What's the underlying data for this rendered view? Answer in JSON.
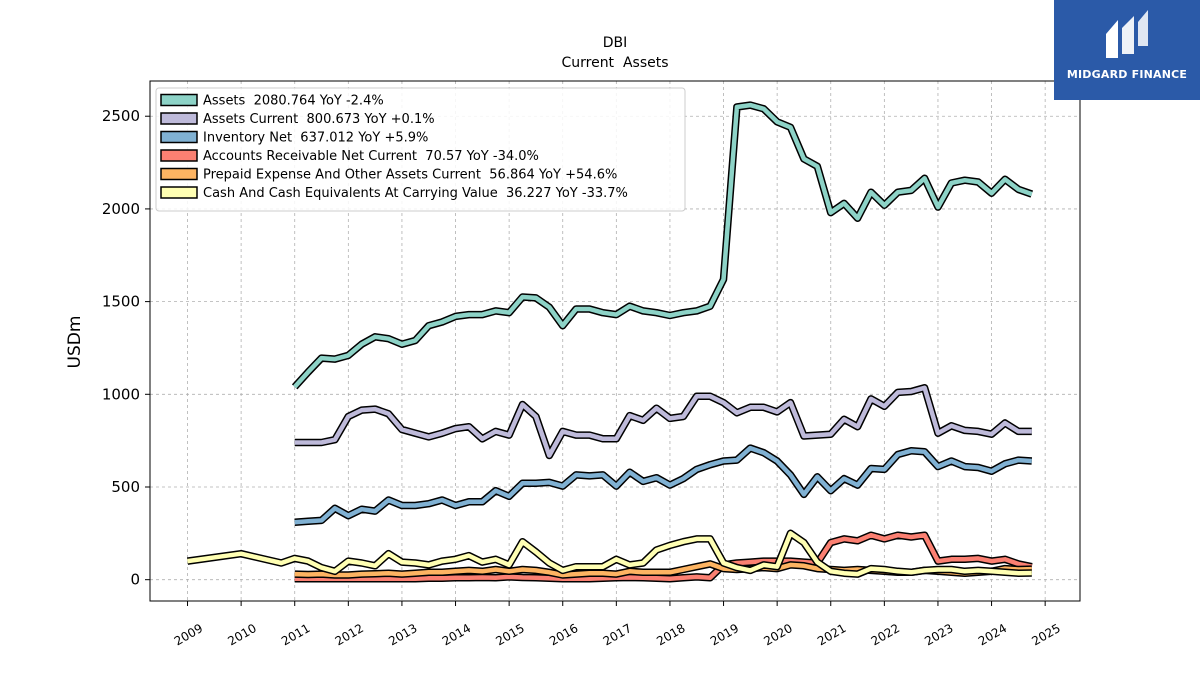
{
  "header": {
    "ticker": "DBI",
    "subtitle": "Current  Assets"
  },
  "logo": {
    "text": "MIDGARD FINANCE",
    "background": "#2b5aa8"
  },
  "chart_data": {
    "type": "line",
    "title": "DBI",
    "subtitle": "Current  Assets",
    "xlabel": "",
    "ylabel": "USDm",
    "xlim": [
      2008.3,
      2025.65
    ],
    "ylim": [
      -115,
      2690
    ],
    "xticks": [
      2009,
      2010,
      2011,
      2012,
      2013,
      2014,
      2015,
      2016,
      2017,
      2018,
      2019,
      2020,
      2021,
      2022,
      2023,
      2024,
      2025
    ],
    "yticks": [
      0,
      500,
      1000,
      1500,
      2000,
      2500
    ],
    "grid": true,
    "legend_position": "top-left",
    "series": [
      {
        "name": "Assets",
        "legend": "Assets  2080.764 YoY -2.4%",
        "color": "#8dd3c7",
        "x": [
          2011.0,
          2011.25,
          2011.5,
          2011.75,
          2012.0,
          2012.25,
          2012.5,
          2012.75,
          2013.0,
          2013.25,
          2013.5,
          2013.75,
          2014.0,
          2014.25,
          2014.5,
          2014.75,
          2015.0,
          2015.25,
          2015.5,
          2015.75,
          2016.0,
          2016.25,
          2016.5,
          2016.75,
          2017.0,
          2017.25,
          2017.5,
          2017.75,
          2018.0,
          2018.25,
          2018.5,
          2018.75,
          2019.0,
          2019.25,
          2019.5,
          2019.75,
          2020.0,
          2020.25,
          2020.5,
          2020.75,
          2021.0,
          2021.25,
          2021.5,
          2021.75,
          2022.0,
          2022.25,
          2022.5,
          2022.75,
          2023.0,
          2023.25,
          2023.5,
          2023.75,
          2024.0,
          2024.25,
          2024.5,
          2024.75
        ],
        "y": [
          1040,
          1120,
          1195,
          1190,
          1210,
          1270,
          1310,
          1300,
          1270,
          1290,
          1370,
          1390,
          1420,
          1430,
          1430,
          1450,
          1440,
          1525,
          1520,
          1470,
          1370,
          1460,
          1460,
          1440,
          1430,
          1475,
          1450,
          1440,
          1425,
          1440,
          1450,
          1475,
          1620,
          2550,
          2560,
          2540,
          2470,
          2440,
          2270,
          2230,
          1980,
          2030,
          1950,
          2090,
          2020,
          2090,
          2100,
          2165,
          2010,
          2140,
          2155,
          2145,
          2085,
          2160,
          2105,
          2080
        ]
      },
      {
        "name": "Assets Current",
        "legend": "Assets Current  800.673 YoY +0.1%",
        "color": "#bebada",
        "x": [
          2011.0,
          2011.25,
          2011.5,
          2011.75,
          2012.0,
          2012.25,
          2012.5,
          2012.75,
          2013.0,
          2013.25,
          2013.5,
          2013.75,
          2014.0,
          2014.25,
          2014.5,
          2014.75,
          2015.0,
          2015.25,
          2015.5,
          2015.75,
          2016.0,
          2016.25,
          2016.5,
          2016.75,
          2017.0,
          2017.25,
          2017.5,
          2017.75,
          2018.0,
          2018.25,
          2018.5,
          2018.75,
          2019.0,
          2019.25,
          2019.5,
          2019.75,
          2020.0,
          2020.25,
          2020.5,
          2020.75,
          2021.0,
          2021.25,
          2021.5,
          2021.75,
          2022.0,
          2022.25,
          2022.5,
          2022.75,
          2023.0,
          2023.25,
          2023.5,
          2023.75,
          2024.0,
          2024.25,
          2024.5,
          2024.75
        ],
        "y": [
          740,
          740,
          740,
          755,
          880,
          915,
          920,
          895,
          810,
          790,
          770,
          790,
          815,
          825,
          760,
          800,
          780,
          945,
          880,
          670,
          800,
          780,
          780,
          760,
          760,
          885,
          860,
          925,
          870,
          880,
          990,
          990,
          955,
          900,
          930,
          930,
          905,
          955,
          775,
          780,
          785,
          865,
          825,
          975,
          935,
          1010,
          1015,
          1035,
          790,
          830,
          805,
          800,
          785,
          845,
          800,
          800
        ]
      },
      {
        "name": "Inventory Net",
        "legend": "Inventory Net  637.012 YoY +5.9%",
        "color": "#80b1d3",
        "x": [
          2011.0,
          2011.25,
          2011.5,
          2011.75,
          2012.0,
          2012.25,
          2012.5,
          2012.75,
          2013.0,
          2013.25,
          2013.5,
          2013.75,
          2014.0,
          2014.25,
          2014.5,
          2014.75,
          2015.0,
          2015.25,
          2015.5,
          2015.75,
          2016.0,
          2016.25,
          2016.5,
          2016.75,
          2017.0,
          2017.25,
          2017.5,
          2017.75,
          2018.0,
          2018.25,
          2018.5,
          2018.75,
          2019.0,
          2019.25,
          2019.5,
          2019.75,
          2020.0,
          2020.25,
          2020.5,
          2020.75,
          2021.0,
          2021.25,
          2021.5,
          2021.75,
          2022.0,
          2022.25,
          2022.5,
          2022.75,
          2023.0,
          2023.25,
          2023.5,
          2023.75,
          2024.0,
          2024.25,
          2024.5,
          2024.75
        ],
        "y": [
          310,
          315,
          320,
          385,
          345,
          380,
          370,
          430,
          400,
          400,
          410,
          430,
          400,
          420,
          420,
          480,
          450,
          520,
          520,
          525,
          505,
          565,
          560,
          565,
          505,
          580,
          530,
          550,
          510,
          545,
          595,
          620,
          640,
          645,
          710,
          685,
          640,
          565,
          460,
          555,
          480,
          545,
          510,
          600,
          595,
          675,
          695,
          690,
          610,
          640,
          610,
          605,
          585,
          625,
          645,
          640
        ]
      },
      {
        "name": "Accounts Receivable Net Current",
        "legend": "Accounts Receivable Net Current  70.57 YoY -34.0%",
        "color": "#fb8072",
        "x": [
          2011.0,
          2011.25,
          2011.5,
          2011.75,
          2012.0,
          2012.25,
          2012.5,
          2012.75,
          2013.0,
          2013.25,
          2013.5,
          2013.75,
          2014.0,
          2014.25,
          2014.5,
          2014.75,
          2015.0,
          2015.25,
          2015.5,
          2015.75,
          2016.0,
          2016.25,
          2016.5,
          2016.75,
          2017.0,
          2017.25,
          2017.5,
          2017.75,
          2018.0,
          2018.25,
          2018.5,
          2018.75,
          2019.0,
          2019.25,
          2019.5,
          2019.75,
          2020.0,
          2020.25,
          2020.5,
          2020.75,
          2021.0,
          2021.25,
          2021.5,
          2021.75,
          2022.0,
          2022.25,
          2022.5,
          2022.75,
          2023.0,
          2023.25,
          2023.5,
          2023.75,
          2024.0,
          2024.25,
          2024.5,
          2024.75
        ],
        "y": [
          5,
          5,
          5,
          5,
          5,
          5,
          5,
          5,
          5,
          5,
          8,
          8,
          10,
          10,
          12,
          10,
          15,
          12,
          10,
          8,
          5,
          5,
          5,
          8,
          10,
          12,
          10,
          8,
          5,
          10,
          15,
          10,
          80,
          90,
          95,
          100,
          100,
          100,
          95,
          90,
          200,
          220,
          210,
          240,
          220,
          240,
          230,
          240,
          100,
          110,
          110,
          115,
          100,
          110,
          85,
          70
        ]
      },
      {
        "name": "Prepaid Expense And Other Assets Current",
        "legend": "Prepaid Expense And Other Assets Current  56.864 YoY +54.6%",
        "color": "#fdb462",
        "x": [
          2011.0,
          2011.25,
          2011.5,
          2011.75,
          2012.0,
          2012.25,
          2012.5,
          2012.75,
          2013.0,
          2013.25,
          2013.5,
          2013.75,
          2014.0,
          2014.25,
          2014.5,
          2014.75,
          2015.0,
          2015.25,
          2015.5,
          2015.75,
          2016.0,
          2016.25,
          2016.5,
          2016.75,
          2017.0,
          2017.25,
          2017.5,
          2017.75,
          2018.0,
          2018.25,
          2018.5,
          2018.75,
          2019.0,
          2019.25,
          2019.5,
          2019.75,
          2020.0,
          2020.25,
          2020.5,
          2020.75,
          2021.0,
          2021.25,
          2021.5,
          2021.75,
          2022.0,
          2022.25,
          2022.5,
          2022.75,
          2023.0,
          2023.25,
          2023.5,
          2023.75,
          2024.0,
          2024.25,
          2024.5,
          2024.75
        ],
        "y": [
          30,
          28,
          30,
          25,
          25,
          30,
          32,
          35,
          30,
          35,
          40,
          40,
          45,
          50,
          45,
          55,
          45,
          55,
          50,
          40,
          25,
          30,
          35,
          35,
          30,
          45,
          40,
          40,
          40,
          55,
          70,
          85,
          60,
          55,
          60,
          65,
          60,
          80,
          75,
          60,
          55,
          50,
          55,
          50,
          45,
          40,
          40,
          50,
          45,
          40,
          35,
          40,
          45,
          60,
          55,
          57
        ]
      },
      {
        "name": "Cash And Cash Equivalents At Carrying Value",
        "legend": "Cash And Cash Equivalents At Carrying Value  36.227 YoY -33.7%",
        "color": "#ffffb3",
        "x": [
          2009.0,
          2010.0,
          2010.75,
          2011.0,
          2011.25,
          2011.5,
          2011.75,
          2012.0,
          2012.25,
          2012.5,
          2012.75,
          2013.0,
          2013.25,
          2013.5,
          2013.75,
          2014.0,
          2014.25,
          2014.5,
          2014.75,
          2015.0,
          2015.25,
          2015.5,
          2015.75,
          2016.0,
          2016.25,
          2016.5,
          2016.75,
          2017.0,
          2017.25,
          2017.5,
          2017.75,
          2018.0,
          2018.25,
          2018.5,
          2018.75,
          2019.0,
          2019.25,
          2019.5,
          2019.75,
          2020.0,
          2020.25,
          2020.5,
          2020.75,
          2021.0,
          2021.25,
          2021.5,
          2021.75,
          2022.0,
          2022.25,
          2022.5,
          2022.75,
          2023.0,
          2023.25,
          2023.5,
          2023.75,
          2024.0,
          2024.25,
          2024.5,
          2024.75
        ],
        "y": [
          100,
          140,
          90,
          115,
          100,
          65,
          45,
          100,
          90,
          75,
          140,
          95,
          90,
          80,
          100,
          110,
          130,
          95,
          110,
          80,
          205,
          150,
          90,
          50,
          70,
          70,
          70,
          110,
          80,
          90,
          160,
          185,
          205,
          220,
          220,
          90,
          65,
          50,
          80,
          70,
          250,
          200,
          95,
          45,
          35,
          30,
          60,
          55,
          45,
          40,
          50,
          55,
          55,
          45,
          50,
          45,
          40,
          35,
          36
        ]
      }
    ]
  }
}
